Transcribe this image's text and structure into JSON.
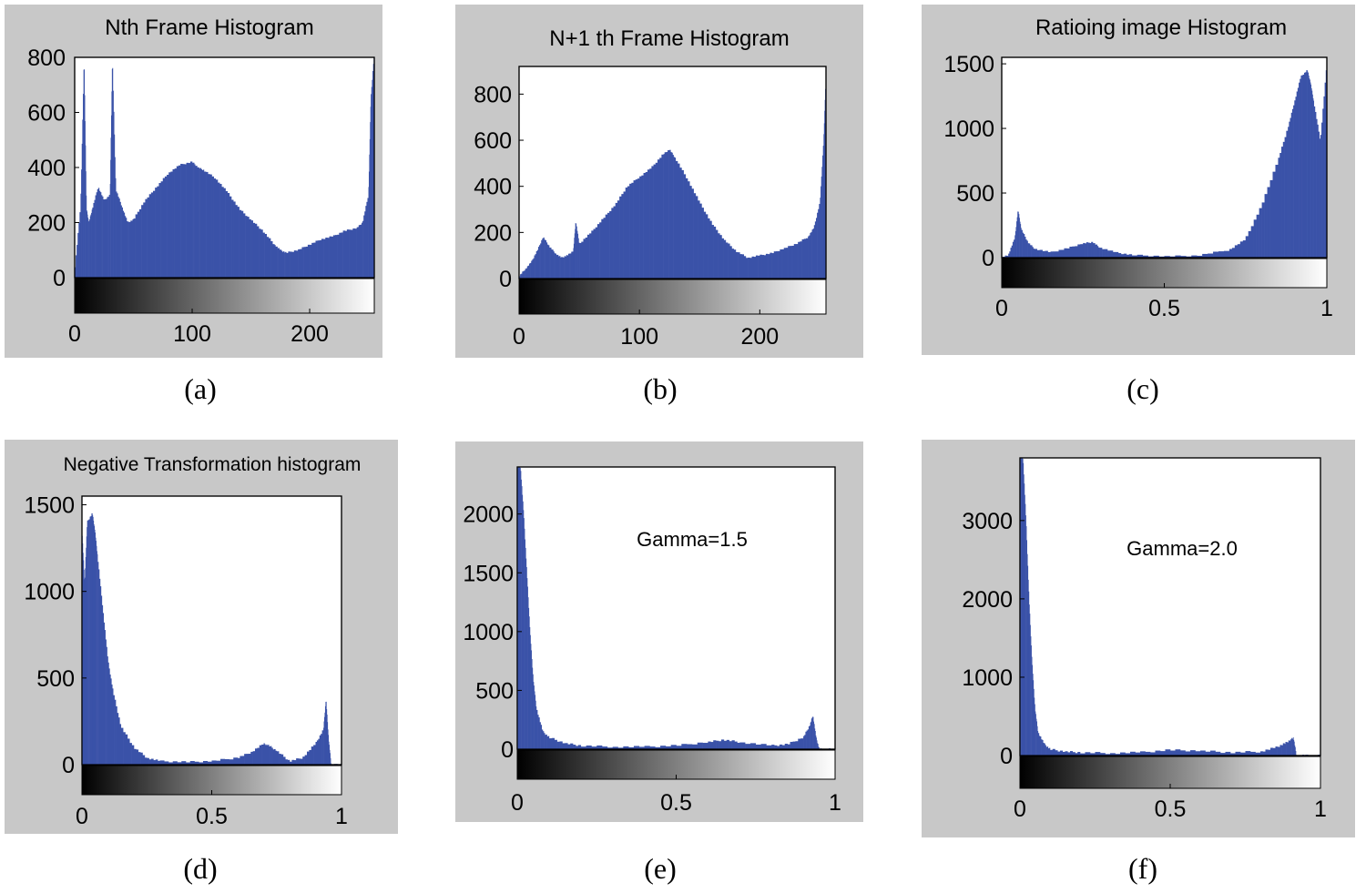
{
  "colors": {
    "bar": "#3a52a8",
    "panel_bg": "#c8c8c8",
    "plot_bg": "#ffffff"
  },
  "chart_data": [
    {
      "type": "bar",
      "caption": "(a)",
      "title": "Nth Frame Histogram",
      "xlim": [
        0,
        255
      ],
      "ylim": [
        0,
        800
      ],
      "xticks": [
        0,
        100,
        200
      ],
      "yticks": [
        0,
        200,
        400,
        600,
        800
      ],
      "colorbar": "grayscale",
      "x": [
        0,
        5,
        8,
        10,
        12,
        15,
        20,
        25,
        30,
        32,
        35,
        40,
        45,
        50,
        60,
        70,
        80,
        90,
        100,
        105,
        110,
        120,
        130,
        140,
        150,
        160,
        170,
        175,
        180,
        190,
        200,
        210,
        220,
        230,
        240,
        245,
        250,
        252,
        255
      ],
      "y": [
        20,
        260,
        800,
        250,
        200,
        250,
        330,
        280,
        300,
        800,
        320,
        260,
        200,
        210,
        280,
        330,
        380,
        410,
        420,
        400,
        390,
        360,
        310,
        250,
        210,
        170,
        120,
        100,
        90,
        100,
        120,
        140,
        150,
        170,
        180,
        200,
        300,
        650,
        820
      ]
    },
    {
      "type": "bar",
      "caption": "(b)",
      "title": "N+1 th Frame Histogram",
      "xlim": [
        0,
        255
      ],
      "ylim": [
        0,
        920
      ],
      "xticks": [
        0,
        100,
        200
      ],
      "yticks": [
        0,
        200,
        400,
        600,
        800
      ],
      "colorbar": "grayscale",
      "x": [
        0,
        5,
        10,
        15,
        20,
        25,
        30,
        35,
        40,
        45,
        47,
        50,
        60,
        70,
        80,
        90,
        100,
        110,
        120,
        125,
        130,
        140,
        150,
        160,
        170,
        180,
        190,
        200,
        210,
        220,
        230,
        240,
        245,
        250,
        253,
        255
      ],
      "y": [
        10,
        40,
        70,
        120,
        180,
        140,
        110,
        90,
        100,
        120,
        250,
        150,
        200,
        260,
        320,
        400,
        440,
        480,
        540,
        560,
        520,
        430,
        330,
        240,
        170,
        120,
        90,
        100,
        110,
        130,
        150,
        180,
        220,
        330,
        600,
        900
      ]
    },
    {
      "type": "bar",
      "caption": "(c)",
      "title": "Ratioing image Histogram",
      "xlim": [
        0,
        1
      ],
      "ylim": [
        0,
        1550
      ],
      "xticks": [
        0,
        0.5,
        1
      ],
      "yticks": [
        0,
        500,
        1000,
        1500
      ],
      "colorbar": "grayscale",
      "x": [
        0,
        0.02,
        0.04,
        0.05,
        0.06,
        0.08,
        0.1,
        0.15,
        0.2,
        0.25,
        0.28,
        0.3,
        0.35,
        0.4,
        0.5,
        0.6,
        0.7,
        0.75,
        0.8,
        0.85,
        0.88,
        0.9,
        0.92,
        0.94,
        0.95,
        0.96,
        0.98,
        1
      ],
      "y": [
        0,
        20,
        150,
        370,
        220,
        120,
        70,
        40,
        70,
        110,
        120,
        80,
        40,
        20,
        10,
        15,
        60,
        140,
        400,
        750,
        1000,
        1200,
        1400,
        1450,
        1350,
        1200,
        900,
        1500
      ]
    },
    {
      "type": "bar",
      "caption": "(d)",
      "title": "Negative Transformation histogram",
      "xlim": [
        0,
        1
      ],
      "ylim": [
        0,
        1550
      ],
      "xticks": [
        0,
        0.5,
        1
      ],
      "yticks": [
        0,
        500,
        1000,
        1500
      ],
      "colorbar": "grayscale",
      "x": [
        0,
        0.01,
        0.02,
        0.04,
        0.05,
        0.06,
        0.08,
        0.1,
        0.12,
        0.15,
        0.2,
        0.25,
        0.3,
        0.4,
        0.5,
        0.6,
        0.65,
        0.7,
        0.72,
        0.75,
        0.8,
        0.85,
        0.9,
        0.93,
        0.94,
        0.95,
        0.96,
        0.98,
        1
      ],
      "y": [
        1350,
        1050,
        1400,
        1450,
        1350,
        1200,
        900,
        600,
        420,
        220,
        100,
        40,
        20,
        15,
        20,
        40,
        70,
        120,
        110,
        80,
        20,
        40,
        120,
        200,
        380,
        150,
        0,
        0,
        0
      ]
    },
    {
      "type": "bar",
      "caption": "(e)",
      "title": "",
      "annotation": "Gamma=1.5",
      "xlim": [
        0,
        1
      ],
      "ylim": [
        0,
        2400
      ],
      "xticks": [
        0,
        0.5,
        1
      ],
      "yticks": [
        0,
        500,
        1000,
        1500,
        2000
      ],
      "colorbar": "grayscale",
      "x": [
        0,
        0.01,
        0.02,
        0.03,
        0.04,
        0.05,
        0.06,
        0.08,
        0.1,
        0.15,
        0.2,
        0.3,
        0.4,
        0.5,
        0.6,
        0.65,
        0.7,
        0.8,
        0.85,
        0.9,
        0.92,
        0.93,
        0.94,
        0.95,
        0.97,
        1
      ],
      "y": [
        2400,
        2400,
        2000,
        1500,
        1000,
        600,
        350,
        150,
        100,
        50,
        30,
        20,
        20,
        30,
        60,
        80,
        60,
        30,
        40,
        100,
        200,
        290,
        100,
        0,
        0,
        0
      ]
    },
    {
      "type": "bar",
      "caption": "(f)",
      "title": "",
      "annotation": "Gamma=2.0",
      "xlim": [
        0,
        1
      ],
      "ylim": [
        0,
        3800
      ],
      "xticks": [
        0,
        0.5,
        1
      ],
      "yticks": [
        0,
        1000,
        2000,
        3000
      ],
      "colorbar": "grayscale",
      "x": [
        0,
        0.01,
        0.02,
        0.03,
        0.04,
        0.05,
        0.06,
        0.08,
        0.1,
        0.15,
        0.2,
        0.3,
        0.4,
        0.5,
        0.6,
        0.7,
        0.8,
        0.85,
        0.88,
        0.9,
        0.91,
        0.92,
        0.95,
        1
      ],
      "y": [
        3800,
        3800,
        3000,
        2000,
        1200,
        600,
        300,
        150,
        80,
        50,
        40,
        30,
        40,
        70,
        60,
        40,
        50,
        100,
        150,
        200,
        230,
        0,
        0,
        0
      ]
    }
  ]
}
